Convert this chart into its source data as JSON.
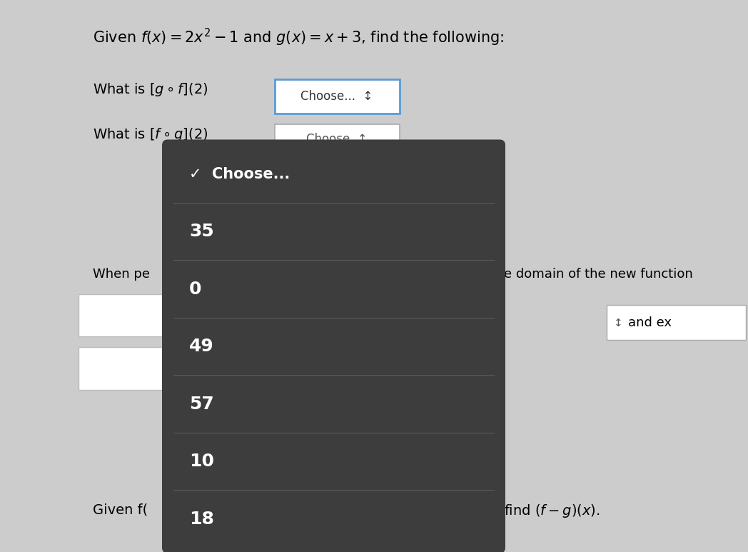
{
  "bg_color": "#cccccc",
  "title_text": "Given $f(x) = 2x^2 - 1$ and $g(x) = x + 3$, find the following:",
  "q1_text": "What is $[g \\circ f](2)$",
  "q2_text": "What is $[f \\circ g](2)$",
  "when_pe_text": "When pe",
  "domain_text": "e domain of the new function",
  "given_f_text": "Given f(",
  "find_text": "find $(f - g)(x)$.",
  "dropdown_bg": "#3d3d3d",
  "dropdown_items": [
    "✓  Choose...",
    "35",
    "0",
    "49",
    "57",
    "10",
    "18"
  ],
  "separator_color": "#5a5a5a",
  "item_font_sizes": [
    15,
    18,
    18,
    18,
    18,
    18,
    18
  ],
  "item_font_weights": [
    "bold",
    "bold",
    "bold",
    "bold",
    "bold",
    "bold",
    "bold"
  ]
}
